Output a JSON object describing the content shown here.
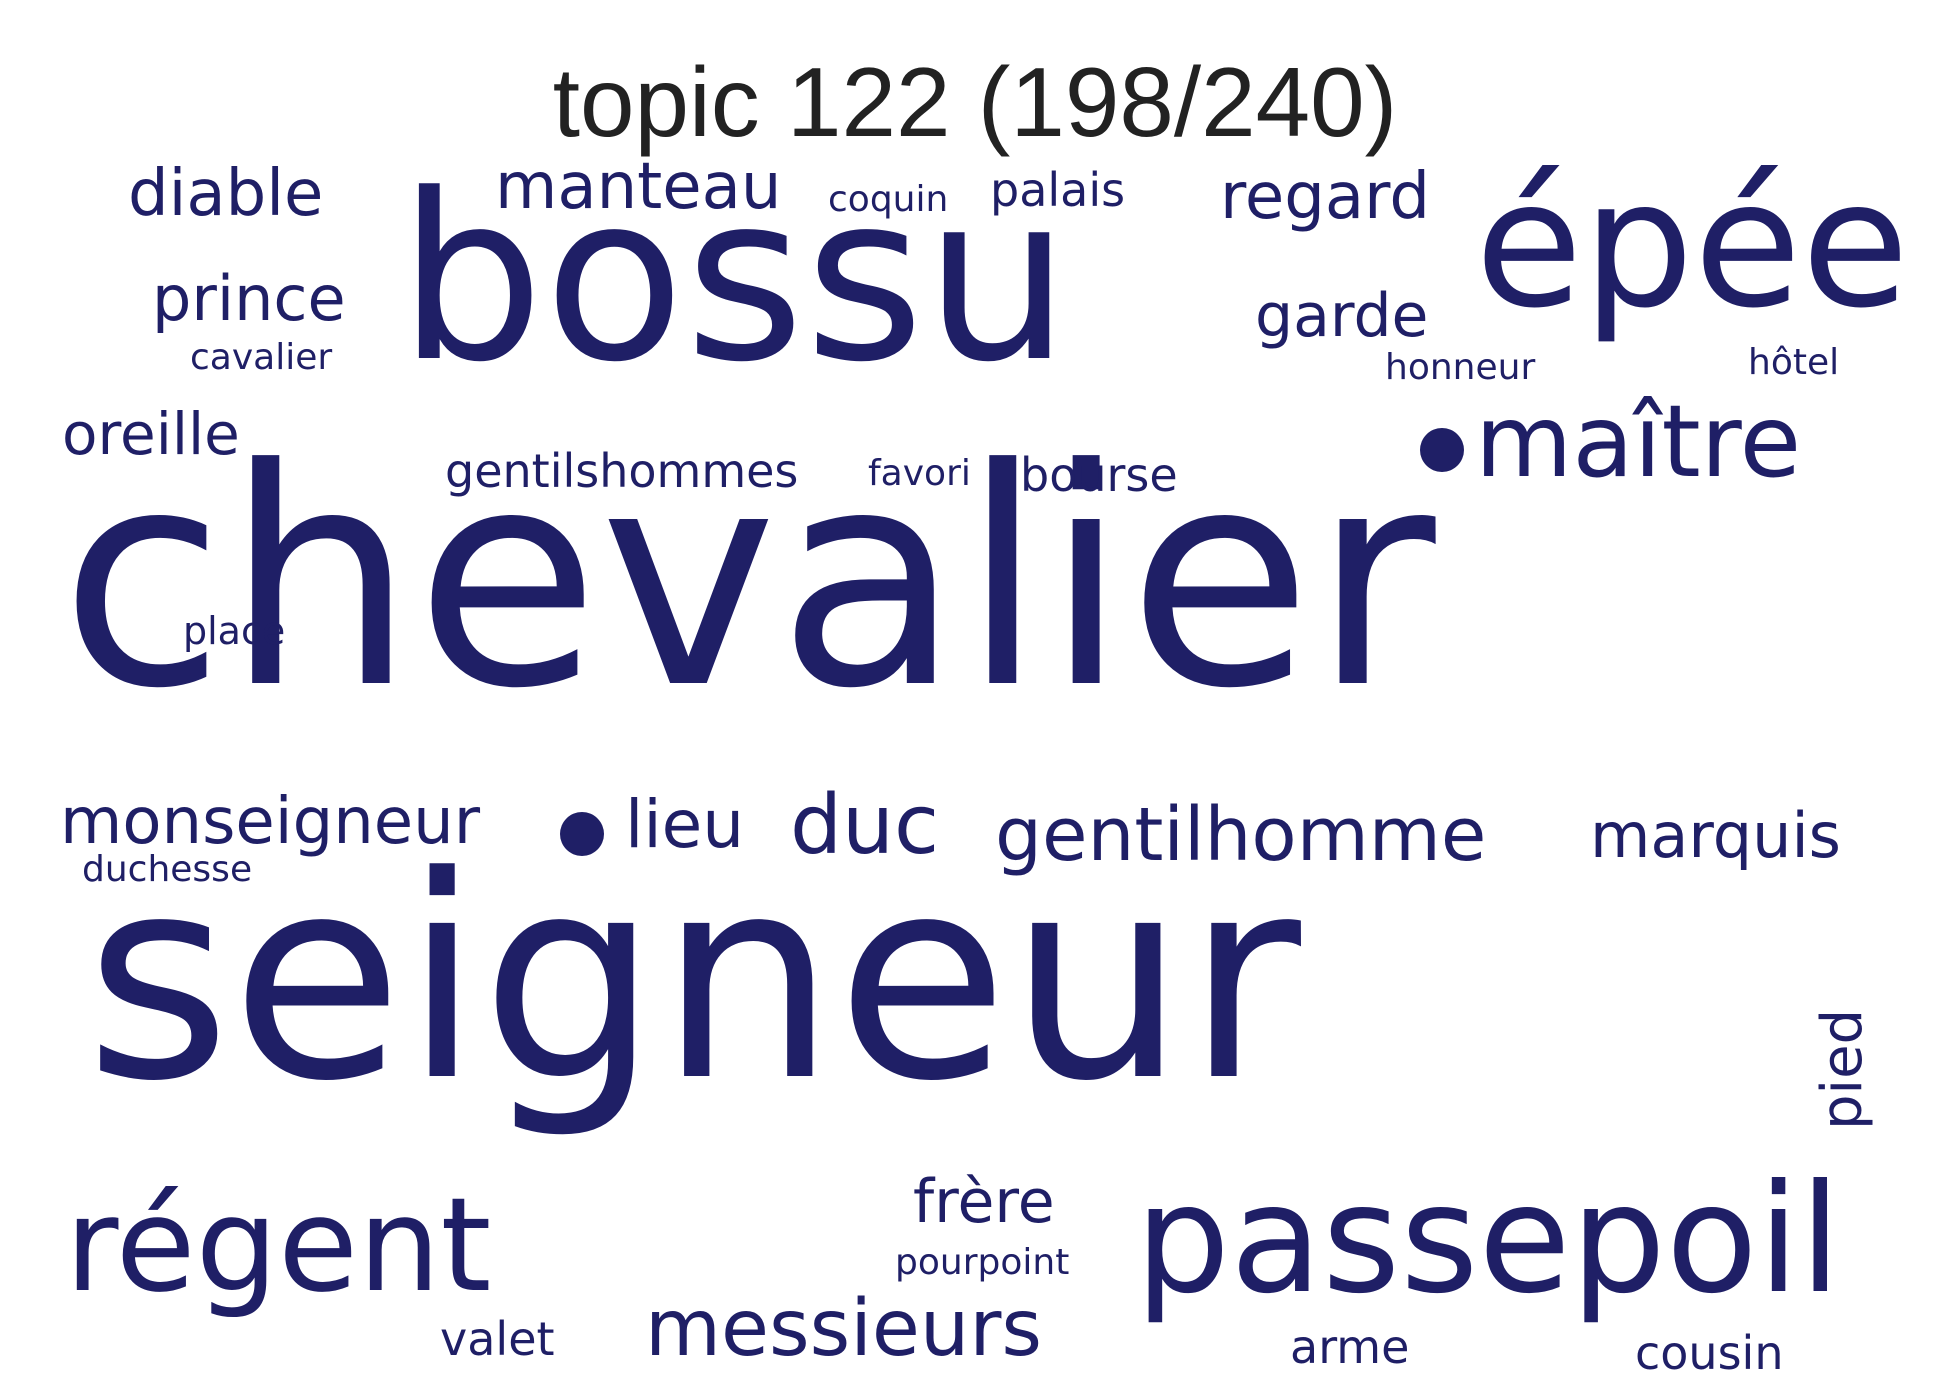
{
  "title": "topic 122 (198/240)",
  "word_color": "#1f1f66",
  "words": [
    {
      "text": "chevalier"
    },
    {
      "text": "seigneur"
    },
    {
      "text": "bossu"
    },
    {
      "text": "épée"
    },
    {
      "text": "passepoil"
    },
    {
      "text": "régent"
    },
    {
      "text": "maître"
    },
    {
      "text": "gentilhomme"
    },
    {
      "text": "messieurs"
    },
    {
      "text": "duc"
    },
    {
      "text": "marquis"
    },
    {
      "text": "monseigneur"
    },
    {
      "text": "regard"
    },
    {
      "text": "manteau"
    },
    {
      "text": "diable"
    },
    {
      "text": "prince"
    },
    {
      "text": "garde"
    },
    {
      "text": "oreille"
    },
    {
      "text": "lieu"
    },
    {
      "text": "frère"
    },
    {
      "text": "gentilshommes"
    },
    {
      "text": "bourse"
    },
    {
      "text": "palais"
    },
    {
      "text": "pied"
    },
    {
      "text": "valet"
    },
    {
      "text": "arme"
    },
    {
      "text": "cousin"
    },
    {
      "text": "coquin"
    },
    {
      "text": "favori"
    },
    {
      "text": "cavalier"
    },
    {
      "text": "honneur"
    },
    {
      "text": "hôtel"
    },
    {
      "text": "place"
    },
    {
      "text": "duchesse"
    },
    {
      "text": "pourpoint"
    }
  ]
}
